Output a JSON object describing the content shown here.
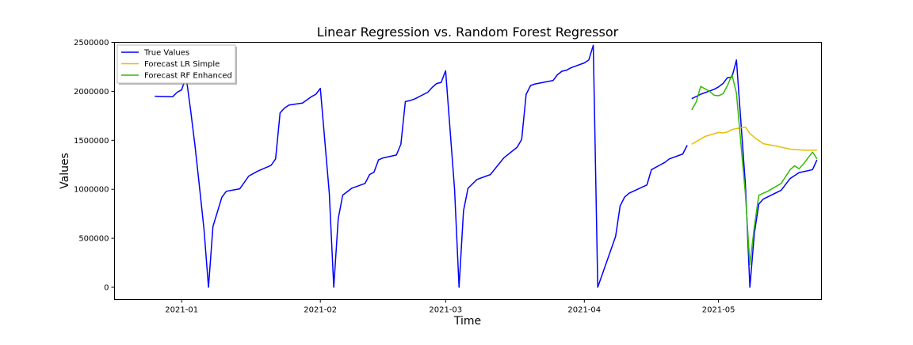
{
  "chart_data": {
    "type": "line",
    "title": "Linear Regression vs. Random Forest Regressor",
    "xlabel": "Time",
    "ylabel": "Values",
    "xlim": [
      "2020-12-17",
      "2021-05-24"
    ],
    "ylim": [
      -125000,
      2500000
    ],
    "x_ticks": [
      "2021-01-01",
      "2021-02-01",
      "2021-03-01",
      "2021-04-01",
      "2021-05-01"
    ],
    "x_tick_labels": [
      "2021-01",
      "2021-02",
      "2021-03",
      "2021-04",
      "2021-05"
    ],
    "y_ticks": [
      0,
      500000,
      1000000,
      1500000,
      2000000,
      2500000
    ],
    "y_tick_labels": [
      "0",
      "500000",
      "1000000",
      "1500000",
      "2000000",
      "2500000"
    ],
    "legend_position": "top-left",
    "grid": false,
    "series": [
      {
        "name": "True Values",
        "color": "#0000ff",
        "points": [
          [
            "2020-12-26",
            1950000
          ],
          [
            "2020-12-30",
            1945000
          ],
          [
            "2020-12-31",
            1990000
          ],
          [
            "2021-01-01",
            2015000
          ],
          [
            "2021-01-02",
            2150000
          ],
          [
            "2021-01-03",
            1810000
          ],
          [
            "2021-01-04",
            1440000
          ],
          [
            "2021-01-05",
            1020000
          ],
          [
            "2021-01-06",
            590000
          ],
          [
            "2021-01-07",
            0
          ],
          [
            "2021-01-08",
            620000
          ],
          [
            "2021-01-10",
            920000
          ],
          [
            "2021-01-11",
            980000
          ],
          [
            "2021-01-14",
            1005000
          ],
          [
            "2021-01-16",
            1135000
          ],
          [
            "2021-01-18",
            1185000
          ],
          [
            "2021-01-21",
            1245000
          ],
          [
            "2021-01-22",
            1310000
          ],
          [
            "2021-01-23",
            1780000
          ],
          [
            "2021-01-24",
            1830000
          ],
          [
            "2021-01-25",
            1860000
          ],
          [
            "2021-01-28",
            1880000
          ],
          [
            "2021-01-30",
            1945000
          ],
          [
            "2021-01-31",
            1970000
          ],
          [
            "2021-02-01",
            2030000
          ],
          [
            "2021-02-03",
            960000
          ],
          [
            "2021-02-04",
            0
          ],
          [
            "2021-02-05",
            700000
          ],
          [
            "2021-02-06",
            940000
          ],
          [
            "2021-02-08",
            1010000
          ],
          [
            "2021-02-11",
            1060000
          ],
          [
            "2021-02-12",
            1150000
          ],
          [
            "2021-02-13",
            1175000
          ],
          [
            "2021-02-14",
            1300000
          ],
          [
            "2021-02-15",
            1320000
          ],
          [
            "2021-02-18",
            1350000
          ],
          [
            "2021-02-19",
            1460000
          ],
          [
            "2021-02-20",
            1895000
          ],
          [
            "2021-02-21",
            1905000
          ],
          [
            "2021-02-22",
            1920000
          ],
          [
            "2021-02-25",
            1990000
          ],
          [
            "2021-02-26",
            2040000
          ],
          [
            "2021-02-27",
            2080000
          ],
          [
            "2021-02-28",
            2090000
          ],
          [
            "2021-03-01",
            2210000
          ],
          [
            "2021-03-03",
            1000000
          ],
          [
            "2021-03-04",
            0
          ],
          [
            "2021-03-05",
            780000
          ],
          [
            "2021-03-06",
            1010000
          ],
          [
            "2021-03-08",
            1100000
          ],
          [
            "2021-03-11",
            1150000
          ],
          [
            "2021-03-14",
            1320000
          ],
          [
            "2021-03-17",
            1430000
          ],
          [
            "2021-03-18",
            1510000
          ],
          [
            "2021-03-19",
            1970000
          ],
          [
            "2021-03-20",
            2060000
          ],
          [
            "2021-03-21",
            2075000
          ],
          [
            "2021-03-25",
            2110000
          ],
          [
            "2021-03-26",
            2170000
          ],
          [
            "2021-03-27",
            2205000
          ],
          [
            "2021-03-28",
            2215000
          ],
          [
            "2021-03-29",
            2240000
          ],
          [
            "2021-04-01",
            2290000
          ],
          [
            "2021-04-02",
            2320000
          ],
          [
            "2021-04-03",
            2470000
          ],
          [
            "2021-04-04",
            0
          ],
          [
            "2021-04-08",
            520000
          ],
          [
            "2021-04-09",
            830000
          ],
          [
            "2021-04-10",
            920000
          ],
          [
            "2021-04-11",
            960000
          ],
          [
            "2021-04-15",
            1045000
          ],
          [
            "2021-04-16",
            1200000
          ],
          [
            "2021-04-18",
            1250000
          ],
          [
            "2021-04-19",
            1275000
          ],
          [
            "2021-04-20",
            1310000
          ],
          [
            "2021-04-23",
            1360000
          ],
          [
            "2021-04-24",
            1450000
          ]
        ]
      },
      {
        "name": "",
        "color": "#0000ff",
        "points": [
          [
            "2021-04-25",
            1925000
          ],
          [
            "2021-04-27",
            1970000
          ],
          [
            "2021-04-30",
            2020000
          ],
          [
            "2021-05-01",
            2045000
          ],
          [
            "2021-05-02",
            2080000
          ],
          [
            "2021-05-03",
            2140000
          ],
          [
            "2021-05-04",
            2145000
          ],
          [
            "2021-05-05",
            2320000
          ],
          [
            "2021-05-07",
            1050000
          ],
          [
            "2021-05-08",
            0
          ],
          [
            "2021-05-09",
            550000
          ],
          [
            "2021-05-10",
            850000
          ],
          [
            "2021-05-11",
            900000
          ],
          [
            "2021-05-15",
            990000
          ],
          [
            "2021-05-17",
            1110000
          ],
          [
            "2021-05-19",
            1170000
          ],
          [
            "2021-05-22",
            1200000
          ],
          [
            "2021-05-23",
            1300000
          ]
        ]
      },
      {
        "name": "Forecast LR Simple",
        "color": "#e6c000",
        "points": [
          [
            "2021-04-25",
            1460000
          ],
          [
            "2021-04-28",
            1540000
          ],
          [
            "2021-05-01",
            1580000
          ],
          [
            "2021-05-02",
            1575000
          ],
          [
            "2021-05-03",
            1585000
          ],
          [
            "2021-05-04",
            1610000
          ],
          [
            "2021-05-05",
            1620000
          ],
          [
            "2021-05-07",
            1635000
          ],
          [
            "2021-05-08",
            1570000
          ],
          [
            "2021-05-09",
            1530000
          ],
          [
            "2021-05-11",
            1465000
          ],
          [
            "2021-05-14",
            1440000
          ],
          [
            "2021-05-17",
            1410000
          ],
          [
            "2021-05-20",
            1400000
          ],
          [
            "2021-05-23",
            1400000
          ]
        ]
      },
      {
        "name": "Forecast RF Enhanced",
        "color": "#33bb00",
        "points": [
          [
            "2021-04-25",
            1810000
          ],
          [
            "2021-04-26",
            1890000
          ],
          [
            "2021-04-27",
            2050000
          ],
          [
            "2021-04-29",
            2000000
          ],
          [
            "2021-04-30",
            1960000
          ],
          [
            "2021-05-01",
            1955000
          ],
          [
            "2021-05-02",
            1975000
          ],
          [
            "2021-05-03",
            2060000
          ],
          [
            "2021-05-04",
            2170000
          ],
          [
            "2021-05-05",
            1980000
          ],
          [
            "2021-05-07",
            950000
          ],
          [
            "2021-05-08",
            230000
          ],
          [
            "2021-05-09",
            620000
          ],
          [
            "2021-05-10",
            940000
          ],
          [
            "2021-05-12",
            980000
          ],
          [
            "2021-05-15",
            1060000
          ],
          [
            "2021-05-16",
            1130000
          ],
          [
            "2021-05-17",
            1200000
          ],
          [
            "2021-05-18",
            1240000
          ],
          [
            "2021-05-19",
            1210000
          ],
          [
            "2021-05-20",
            1260000
          ],
          [
            "2021-05-22",
            1380000
          ],
          [
            "2021-05-23",
            1310000
          ]
        ]
      }
    ]
  }
}
